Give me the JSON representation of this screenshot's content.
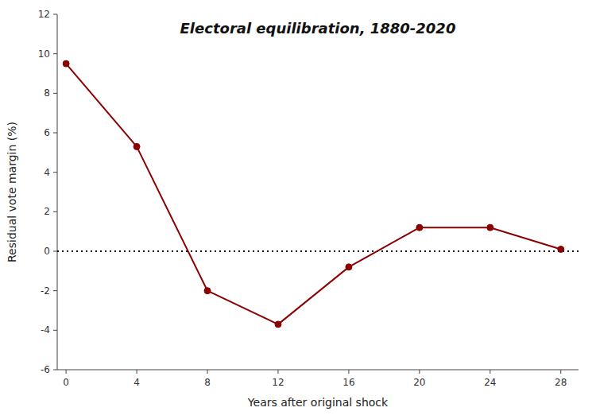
{
  "chart_data": {
    "type": "line",
    "title": "Electoral equilibration, 1880-2020",
    "xlabel": "Years after original shock",
    "ylabel": "Residual vote margin (%)",
    "x": [
      0,
      4,
      8,
      12,
      16,
      20,
      24,
      28
    ],
    "values": [
      9.5,
      5.3,
      -2.0,
      -3.7,
      -0.8,
      1.2,
      1.2,
      0.1
    ],
    "color": "#8B0000",
    "marker": "circle",
    "line_style": "solid",
    "xlim": [
      -0.5,
      29
    ],
    "ylim": [
      -6,
      12
    ],
    "xticks": [
      0,
      4,
      8,
      12,
      16,
      20,
      24,
      28
    ],
    "yticks": [
      -6,
      -4,
      -2,
      0,
      2,
      4,
      6,
      8,
      10,
      12
    ],
    "reference_lines": [
      {
        "y": 0,
        "line_style": "dotted",
        "color": "black"
      }
    ],
    "grid": false
  }
}
